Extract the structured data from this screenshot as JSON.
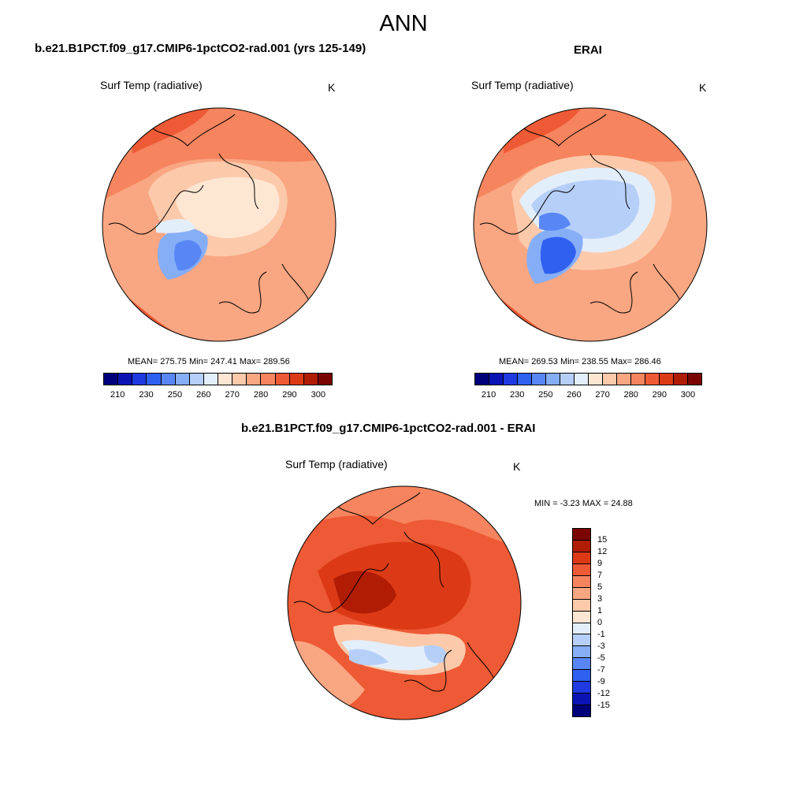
{
  "main_title": "ANN",
  "panels": {
    "model": {
      "title": "b.e21.B1PCT.f09_g17.CMIP6-1pctCO2-rad.001 (yrs 125-149)",
      "variable": "Surf Temp (radiative)",
      "units": "K",
      "stats": "MEAN= 275.75  Min= 247.41  Max= 289.56",
      "stat_values": {
        "mean": 275.75,
        "min": 247.41,
        "max": 289.56
      }
    },
    "obs": {
      "title": "ERAI",
      "variable": "Surf Temp (radiative)",
      "units": "K",
      "stats": "MEAN= 269.53  Min= 238.55  Max= 286.46",
      "stat_values": {
        "mean": 269.53,
        "min": 238.55,
        "max": 286.46
      }
    },
    "diff": {
      "title": "b.e21.B1PCT.f09_g17.CMIP6-1pctCO2-rad.001 - ERAI",
      "variable": "Surf Temp (radiative)",
      "units": "K",
      "stats": "MIN =  -3.23 MAX =  24.88",
      "stat_values": {
        "min": -3.23,
        "max": 24.88
      }
    }
  },
  "colorbar_abs": {
    "tick_labels": [
      "210",
      "230",
      "250",
      "260",
      "270",
      "280",
      "290",
      "300"
    ],
    "colors": [
      "#00007a",
      "#0a14b4",
      "#1f3ae0",
      "#3060f0",
      "#5887f5",
      "#86aef7",
      "#b6cff8",
      "#e3eefb",
      "#fde6d2",
      "#fcc9ab",
      "#f9a682",
      "#f6845e",
      "#ee5a35",
      "#dc3a16",
      "#b01c04",
      "#7a0400"
    ]
  },
  "colorbar_diff": {
    "tick_labels": [
      "15",
      "12",
      "9",
      "7",
      "5",
      "3",
      "1",
      "0",
      "-1",
      "-3",
      "-5",
      "-7",
      "-9",
      "-12",
      "-15"
    ],
    "colors": [
      "#7a0400",
      "#b01c04",
      "#dc3a16",
      "#ee5a35",
      "#f6845e",
      "#f9a682",
      "#fcc9ab",
      "#fde6d2",
      "#e3eefb",
      "#b6cff8",
      "#86aef7",
      "#5887f5",
      "#3060f0",
      "#1f3ae0",
      "#0a14b4",
      "#00007a"
    ]
  }
}
